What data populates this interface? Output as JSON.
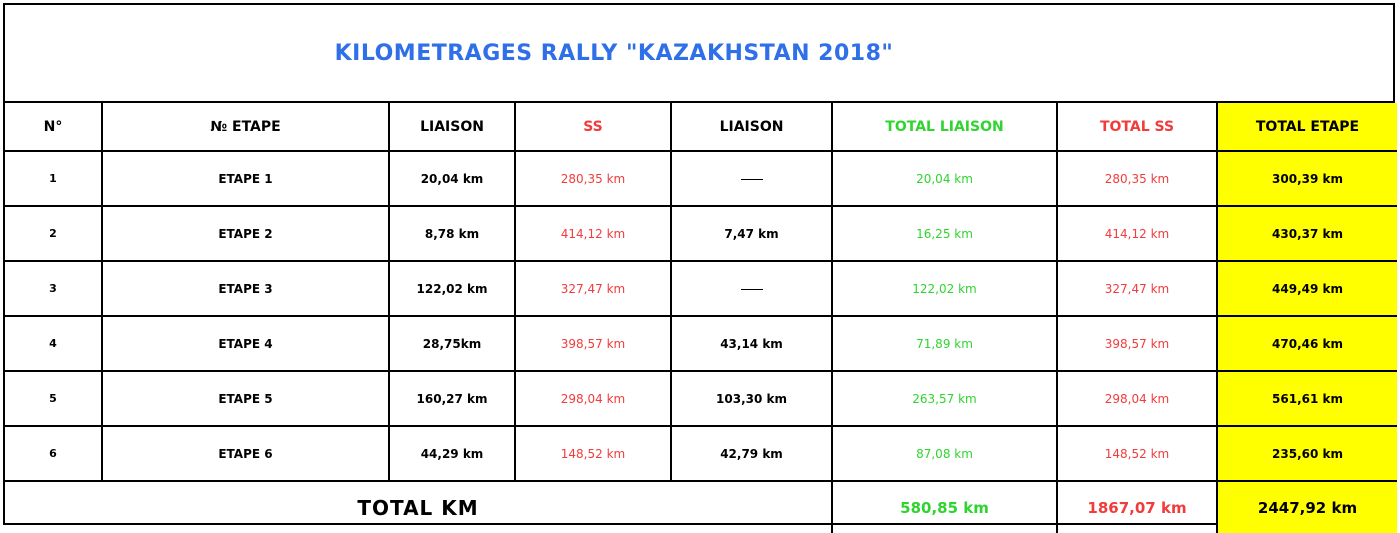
{
  "title": "KILOMETRAGES RALLY \"KAZAKHSTAN 2018\"",
  "headers": {
    "num": "N°",
    "etape": "№ ETAPE",
    "liaison1": "LIAISON",
    "ss": "SS",
    "liaison2": "LIAISON",
    "total_liaison": "TOTAL LIAISON",
    "total_ss": "TOTAL SS",
    "total_etape": "TOTAL ETAPE"
  },
  "rows": [
    {
      "num": "1",
      "etape": "ETAPE 1",
      "liaison1": "20,04 km",
      "ss": "280,35 km",
      "liaison2": "",
      "total_liaison": "20,04 km",
      "total_ss": "280,35 km",
      "total_etape": "300,39 km"
    },
    {
      "num": "2",
      "etape": "ETAPE 2",
      "liaison1": "8,78 km",
      "ss": "414,12 km",
      "liaison2": "7,47 km",
      "total_liaison": "16,25 km",
      "total_ss": "414,12 km",
      "total_etape": "430,37 km"
    },
    {
      "num": "3",
      "etape": "ETAPE 3",
      "liaison1": "122,02 km",
      "ss": "327,47 km",
      "liaison2": "",
      "total_liaison": "122,02 km",
      "total_ss": "327,47 km",
      "total_etape": "449,49 km"
    },
    {
      "num": "4",
      "etape": "ETAPE 4",
      "liaison1": "28,75km",
      "ss": "398,57 km",
      "liaison2": "43,14 km",
      "total_liaison": "71,89 km",
      "total_ss": "398,57 km",
      "total_etape": "470,46 km"
    },
    {
      "num": "5",
      "etape": "ETAPE 5",
      "liaison1": "160,27 km",
      "ss": "298,04 km",
      "liaison2": "103,30 km",
      "total_liaison": "263,57 km",
      "total_ss": "298,04 km",
      "total_etape": "561,61 km"
    },
    {
      "num": "6",
      "etape": "ETAPE 6",
      "liaison1": "44,29 km",
      "ss": "148,52 km",
      "liaison2": "42,79 km",
      "total_liaison": "87,08 km",
      "total_ss": "148,52 km",
      "total_etape": "235,60 km"
    }
  ],
  "totals": {
    "label": "TOTAL  KM",
    "total_liaison": "580,85 km",
    "total_ss": "1867,07 km",
    "total_etape": "2447,92 km"
  },
  "colors": {
    "title": "#2f6fe8",
    "ss_red": "#f23b3b",
    "liaison_green": "#2fd42f",
    "total_etape_bg": "#ffff00"
  }
}
